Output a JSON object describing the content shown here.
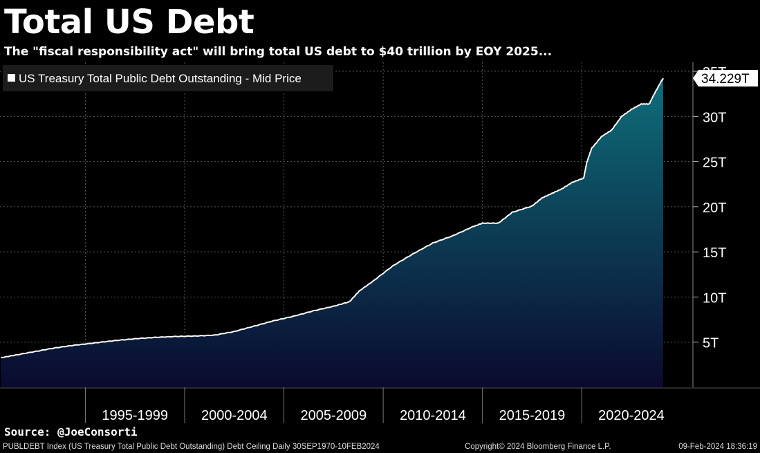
{
  "header": {
    "title": "Total US Debt",
    "subtitle": "The \"fiscal responsibility act\" will bring total US debt to $40 trillion by EOY 2025..."
  },
  "colors": {
    "background": "#000000",
    "line": "#ffffff",
    "fill_top": "#0e6e7a",
    "fill_bottom": "#0a0a2e",
    "grid": "#5a5a5a"
  },
  "chart_data": {
    "type": "area",
    "legend": "US Treasury Total Public Debt Outstanding - Mid Price",
    "legend_position": "top-left",
    "last_value_label": "34.229T",
    "x_ticks": [
      "1995-1999",
      "2000-2004",
      "2005-2009",
      "2010-2014",
      "2015-2019",
      "2020-2024"
    ],
    "y_ticks": [
      "5T",
      "10T",
      "15T",
      "20T",
      "25T",
      "30T",
      "35T"
    ],
    "y_unit": "trillions USD",
    "xlim": [
      1990.7,
      2025.6
    ],
    "ylim": [
      0,
      36
    ],
    "grid": true,
    "series": [
      {
        "points": [
          [
            1990.75,
            3.3
          ],
          [
            1991.5,
            3.6
          ],
          [
            1992.5,
            4.0
          ],
          [
            1993.5,
            4.4
          ],
          [
            1994.5,
            4.7
          ],
          [
            1995.5,
            4.95
          ],
          [
            1996.5,
            5.2
          ],
          [
            1997.5,
            5.4
          ],
          [
            1998.5,
            5.55
          ],
          [
            1999.5,
            5.65
          ],
          [
            2000.5,
            5.7
          ],
          [
            2001.5,
            5.8
          ],
          [
            2002.5,
            6.2
          ],
          [
            2003.5,
            6.8
          ],
          [
            2004.5,
            7.4
          ],
          [
            2005.5,
            7.9
          ],
          [
            2006.5,
            8.5
          ],
          [
            2007.5,
            9.0
          ],
          [
            2008.3,
            9.5
          ],
          [
            2008.8,
            10.7
          ],
          [
            2009.5,
            11.8
          ],
          [
            2010.5,
            13.5
          ],
          [
            2011.5,
            14.8
          ],
          [
            2012.5,
            16.0
          ],
          [
            2013.5,
            16.8
          ],
          [
            2014.5,
            17.8
          ],
          [
            2015.0,
            18.2
          ],
          [
            2015.8,
            18.2
          ],
          [
            2016.5,
            19.4
          ],
          [
            2017.5,
            20.1
          ],
          [
            2018.0,
            21.0
          ],
          [
            2018.5,
            21.5
          ],
          [
            2019.0,
            22.0
          ],
          [
            2019.5,
            22.7
          ],
          [
            2020.1,
            23.2
          ],
          [
            2020.25,
            24.9
          ],
          [
            2020.5,
            26.5
          ],
          [
            2021.0,
            27.8
          ],
          [
            2021.5,
            28.5
          ],
          [
            2022.0,
            30.0
          ],
          [
            2022.5,
            30.8
          ],
          [
            2023.0,
            31.4
          ],
          [
            2023.4,
            31.4
          ],
          [
            2023.6,
            32.3
          ],
          [
            2024.0,
            33.9
          ],
          [
            2024.1,
            34.229
          ]
        ]
      }
    ]
  },
  "footer": {
    "source": "Source: @JoeConsorti",
    "index_info": "PUBLDEBT Index (US Treasury Total Public Debt Outstanding) Debt Ceiling  Daily 30SEP1970-10FEB2024",
    "copyright": "Copyright© 2024 Bloomberg Finance L.P.",
    "timestamp": "09-Feb-2024 18:36:19"
  }
}
